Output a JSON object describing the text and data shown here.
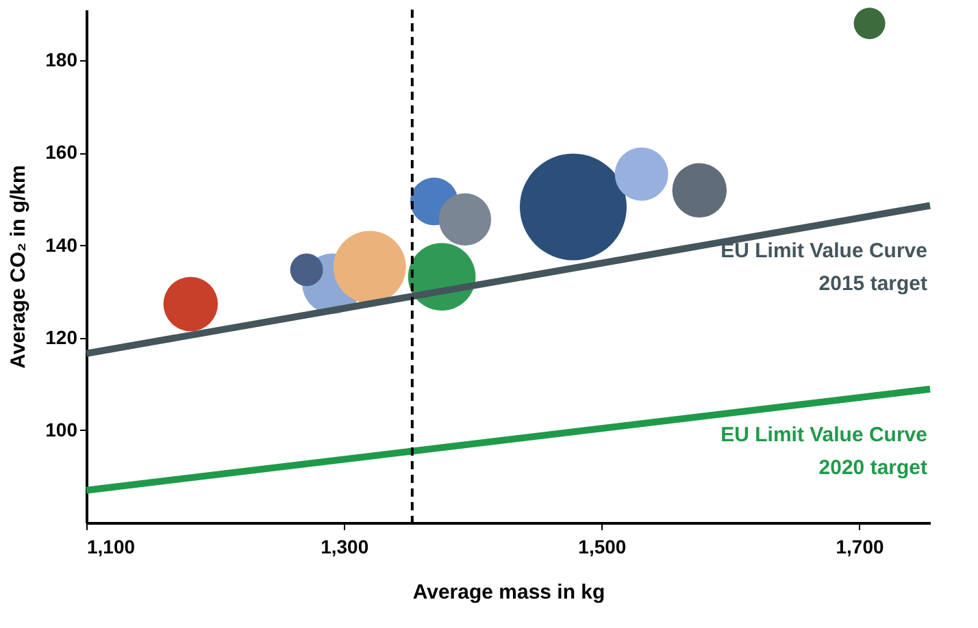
{
  "chart_data": {
    "type": "bubble",
    "xlabel": "Average mass in kg",
    "ylabel": "Average CO₂ in g/km",
    "xlim": [
      1100,
      1755
    ],
    "ylim": [
      80,
      191
    ],
    "xticks": [
      {
        "value": 1100,
        "label": "1,100"
      },
      {
        "value": 1300,
        "label": "1,300"
      },
      {
        "value": 1500,
        "label": "1,500"
      },
      {
        "value": 1700,
        "label": "1,700"
      }
    ],
    "yticks": [
      100,
      120,
      140,
      160,
      180
    ],
    "grid": false,
    "legend": false,
    "series": [
      {
        "x": [
          1181,
          1291,
          1271,
          1320,
          1370,
          1394,
          1376,
          1478,
          1531,
          1576,
          1708
        ],
        "values": [
          127.3,
          131.7,
          134.7,
          135.3,
          149.5,
          145.6,
          133.2,
          148.3,
          155.4,
          151.9,
          188.0
        ],
        "sizes": [
          0.26,
          0.32,
          0.094,
          0.46,
          0.2,
          0.24,
          0.4,
          1,
          0.25,
          0.26,
          0.087
        ],
        "colors": [
          "#c8402a",
          "#8fa9d6",
          "#4a5f85",
          "#ecb27c",
          "#4a7cbf",
          "#7a8694",
          "#2f9a55",
          "#2c4f7a",
          "#97b0de",
          "#5f6d7a",
          "#3d6b3e"
        ]
      },
      {
        "type": "line",
        "name": "EU Limit Value Curve\n2015 target",
        "color": "#44555c",
        "x": [
          1100,
          1755
        ],
        "values": [
          116.6,
          148.6
        ]
      },
      {
        "type": "line",
        "name": "EU Limit Value Curve\n2020 target",
        "color": "#1f9a4a",
        "x": [
          1100,
          1755
        ],
        "values": [
          87.0,
          108.9
        ]
      }
    ],
    "ref_lines": [
      {
        "axis": "x",
        "value": 1353,
        "color": "#000000",
        "line_style": "dashed"
      }
    ]
  }
}
